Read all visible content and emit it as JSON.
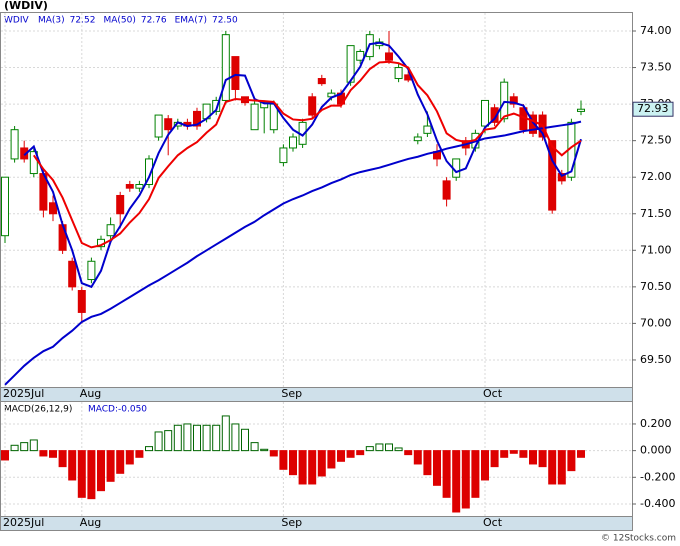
{
  "chart_data": [
    {
      "type": "candlestick",
      "title": "(WDIV)",
      "symbol": "WDIV",
      "ylim": [
        69.13,
        74.26
      ],
      "yticks": [
        {
          "value": 69.5,
          "label": "69.50"
        },
        {
          "value": 70,
          "label": "70.00"
        },
        {
          "value": 70.5,
          "label": "70.50"
        },
        {
          "value": 71,
          "label": "71.00"
        },
        {
          "value": 71.5,
          "label": "71.50"
        },
        {
          "value": 72,
          "label": "72.00"
        },
        {
          "value": 72.5,
          "label": "72.50"
        },
        {
          "value": 73,
          "label": "73.00"
        },
        {
          "value": 73.5,
          "label": "73.50"
        },
        {
          "value": 74,
          "label": "74.00"
        }
      ],
      "xticks": [
        {
          "value": 0,
          "label": "2025Jul"
        },
        {
          "value": 8,
          "label": "Aug"
        },
        {
          "value": 29,
          "label": "Sep"
        },
        {
          "value": 50,
          "label": "Oct"
        }
      ],
      "grid": true,
      "up_color": "#008000",
      "down_color": "#dd0000",
      "last_price_label": "72.93",
      "open": [
        71.2,
        72.25,
        72.4,
        72.05,
        72.05,
        71.65,
        71.35,
        70.85,
        70.45,
        70.6,
        71.05,
        71.2,
        71.75,
        71.9,
        71.85,
        71.9,
        72.55,
        72.8,
        72.7,
        72.75,
        72.9,
        72.8,
        72.9,
        73.05,
        73.65,
        73.1,
        72.65,
        72.95,
        72.65,
        72.2,
        72.4,
        72.45,
        73.1,
        73.35,
        73.1,
        73.15,
        73.3,
        73.6,
        73.65,
        73.8,
        73.7,
        73.35,
        73.4,
        72.5,
        72.6,
        72.35,
        71.95,
        72.0,
        72.5,
        72.4,
        72.7,
        72.95,
        72.8,
        73.1,
        72.95,
        72.85,
        72.85,
        72.5,
        72.05,
        72.0,
        72.9
      ],
      "high": [
        72.0,
        72.7,
        72.5,
        72.4,
        72.1,
        71.75,
        71.4,
        70.9,
        70.5,
        70.9,
        71.2,
        71.45,
        71.8,
        71.95,
        71.95,
        72.3,
        72.85,
        72.85,
        72.8,
        72.8,
        72.95,
        73.0,
        73.1,
        74.0,
        73.65,
        73.1,
        73.05,
        73.05,
        73.05,
        72.45,
        72.6,
        72.8,
        73.15,
        73.4,
        73.2,
        73.2,
        73.8,
        73.75,
        74.0,
        73.9,
        74.0,
        73.55,
        73.45,
        72.6,
        72.9,
        72.45,
        72.0,
        72.25,
        72.55,
        72.65,
        73.05,
        73.0,
        73.35,
        73.15,
        73.0,
        72.9,
        72.9,
        72.5,
        72.1,
        72.8,
        73.05
      ],
      "low": [
        71.1,
        72.2,
        72.2,
        72.0,
        71.45,
        71.4,
        70.95,
        70.45,
        70.0,
        70.55,
        71.0,
        71.15,
        71.3,
        71.8,
        71.8,
        71.85,
        72.5,
        72.3,
        72.65,
        72.65,
        72.65,
        72.75,
        72.85,
        73.0,
        73.05,
        72.98,
        72.65,
        72.6,
        72.6,
        72.15,
        72.35,
        72.4,
        72.8,
        73.25,
        73.05,
        72.95,
        73.25,
        73.55,
        73.6,
        73.75,
        73.55,
        73.3,
        73.3,
        72.45,
        72.55,
        72.15,
        71.6,
        71.95,
        72.3,
        72.35,
        72.6,
        72.7,
        72.75,
        72.95,
        72.6,
        72.55,
        72.5,
        71.5,
        71.9,
        71.95,
        72.85
      ],
      "close": [
        72.0,
        72.65,
        72.25,
        72.35,
        71.55,
        71.5,
        71.0,
        70.5,
        70.15,
        70.85,
        71.15,
        71.35,
        71.5,
        71.85,
        71.9,
        72.25,
        72.85,
        72.65,
        72.75,
        72.7,
        72.7,
        73.0,
        73.05,
        73.95,
        73.2,
        73.02,
        73.0,
        73.02,
        73.0,
        72.4,
        72.55,
        72.75,
        72.85,
        73.28,
        73.15,
        73.0,
        73.8,
        73.72,
        73.95,
        73.85,
        73.6,
        73.5,
        73.33,
        72.55,
        72.7,
        72.25,
        71.7,
        72.25,
        72.4,
        72.6,
        73.05,
        72.75,
        73.3,
        73.0,
        72.65,
        72.6,
        72.55,
        71.55,
        71.95,
        72.75,
        72.93
      ],
      "series": [
        {
          "name": "MA(3)",
          "color": "#0000cc",
          "legend_label": "72.52",
          "values": [
            null,
            null,
            72.3,
            72.42,
            72.05,
            71.8,
            71.35,
            71.0,
            70.55,
            70.5,
            70.72,
            71.12,
            71.33,
            71.57,
            71.75,
            72.0,
            72.33,
            72.58,
            72.75,
            72.7,
            72.72,
            72.8,
            72.92,
            73.33,
            73.4,
            73.39,
            73.07,
            73.01,
            73.01,
            72.81,
            72.65,
            72.57,
            72.72,
            72.96,
            73.09,
            73.14,
            73.32,
            73.51,
            73.82,
            73.84,
            73.8,
            73.65,
            73.48,
            73.13,
            72.86,
            72.5,
            72.22,
            72.07,
            72.12,
            72.42,
            72.68,
            72.8,
            73.03,
            73.02,
            72.98,
            72.75,
            72.6,
            72.23,
            72.02,
            72.08,
            72.52
          ]
        },
        {
          "name": "MA(50)",
          "color": "#0000cc",
          "legend_label": "72.76",
          "values": [
            69.16,
            69.29,
            69.42,
            69.53,
            69.62,
            69.68,
            69.8,
            69.9,
            70.02,
            70.09,
            70.13,
            70.2,
            70.28,
            70.36,
            70.44,
            70.52,
            70.59,
            70.67,
            70.75,
            70.83,
            70.92,
            71.0,
            71.08,
            71.16,
            71.24,
            71.32,
            71.39,
            71.48,
            71.56,
            71.64,
            71.7,
            71.75,
            71.81,
            71.86,
            71.92,
            71.97,
            72.03,
            72.07,
            72.1,
            72.13,
            72.17,
            72.21,
            72.25,
            72.28,
            72.32,
            72.35,
            72.39,
            72.42,
            72.45,
            72.49,
            72.53,
            72.55,
            72.57,
            72.6,
            72.63,
            72.65,
            72.67,
            72.69,
            72.71,
            72.73,
            72.76
          ]
        },
        {
          "name": "EMA(7)",
          "color": "#ee0000",
          "legend_label": "72.50",
          "values": [
            null,
            null,
            null,
            72.3,
            72.11,
            71.96,
            71.72,
            71.41,
            71.1,
            71.04,
            71.07,
            71.14,
            71.23,
            71.38,
            71.51,
            71.7,
            71.99,
            72.15,
            72.3,
            72.4,
            72.48,
            72.61,
            72.72,
            73.03,
            73.07,
            73.06,
            73.05,
            73.04,
            73.03,
            72.87,
            72.79,
            72.78,
            72.8,
            72.92,
            72.98,
            72.98,
            73.19,
            73.32,
            73.48,
            73.57,
            73.58,
            73.56,
            73.5,
            73.26,
            73.12,
            72.9,
            72.6,
            72.51,
            72.48,
            72.51,
            72.65,
            72.67,
            72.83,
            72.87,
            72.82,
            72.77,
            72.71,
            72.42,
            72.3,
            72.41,
            72.5
          ]
        }
      ]
    },
    {
      "type": "bar",
      "title": "MACD(26,12,9)",
      "value_label": "MACD:-0.050",
      "ylim": [
        -0.49,
        0.372
      ],
      "yticks": [
        {
          "value": 0.2,
          "label": "0.200"
        },
        {
          "value": 0,
          "label": "0.000"
        },
        {
          "value": -0.2,
          "label": "-0.200"
        },
        {
          "value": -0.4,
          "label": "-0.400"
        }
      ],
      "xticks": [
        {
          "value": 0,
          "label": "2025Jul"
        },
        {
          "value": 8,
          "label": "Aug"
        },
        {
          "value": 29,
          "label": "Sep"
        },
        {
          "value": 50,
          "label": "Oct"
        }
      ],
      "grid": true,
      "up_color": "#006400",
      "down_color": "#dd0000",
      "values": [
        -0.07,
        0.04,
        0.06,
        0.08,
        -0.04,
        -0.05,
        -0.12,
        -0.22,
        -0.35,
        -0.36,
        -0.3,
        -0.23,
        -0.17,
        -0.1,
        -0.05,
        0.03,
        0.14,
        0.15,
        0.19,
        0.2,
        0.19,
        0.19,
        0.19,
        0.26,
        0.2,
        0.16,
        0.06,
        0.01,
        -0.04,
        -0.14,
        -0.18,
        -0.25,
        -0.25,
        -0.19,
        -0.13,
        -0.08,
        -0.05,
        -0.03,
        0.03,
        0.05,
        0.05,
        0.02,
        -0.03,
        -0.1,
        -0.18,
        -0.26,
        -0.35,
        -0.46,
        -0.43,
        -0.35,
        -0.22,
        -0.12,
        -0.05,
        -0.02,
        -0.05,
        -0.1,
        -0.12,
        -0.25,
        -0.25,
        -0.15,
        -0.05
      ]
    }
  ],
  "footer": "© 12Stocks.com"
}
